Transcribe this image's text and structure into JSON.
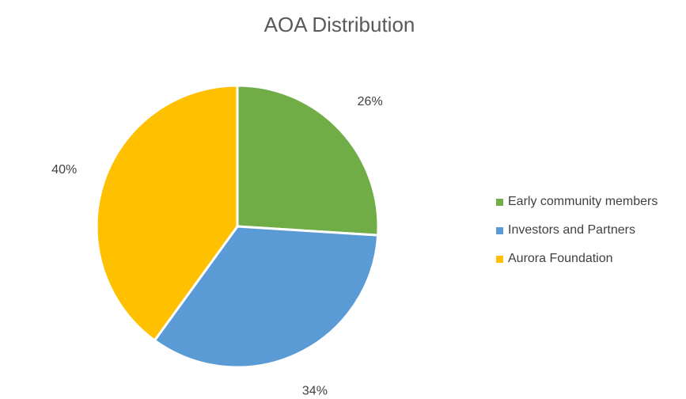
{
  "chart_data": {
    "type": "pie",
    "title": "AOA Distribution",
    "categories": [
      "Early community members",
      "Investors and Partners",
      "Aurora Foundation"
    ],
    "values": [
      26,
      34,
      40
    ],
    "data_labels": [
      "26%",
      "34%",
      "40%"
    ],
    "colors": [
      "#70AD47",
      "#5B9BD5",
      "#FFC000"
    ],
    "legend_position": "right",
    "start_angle": "top, clockwise"
  }
}
